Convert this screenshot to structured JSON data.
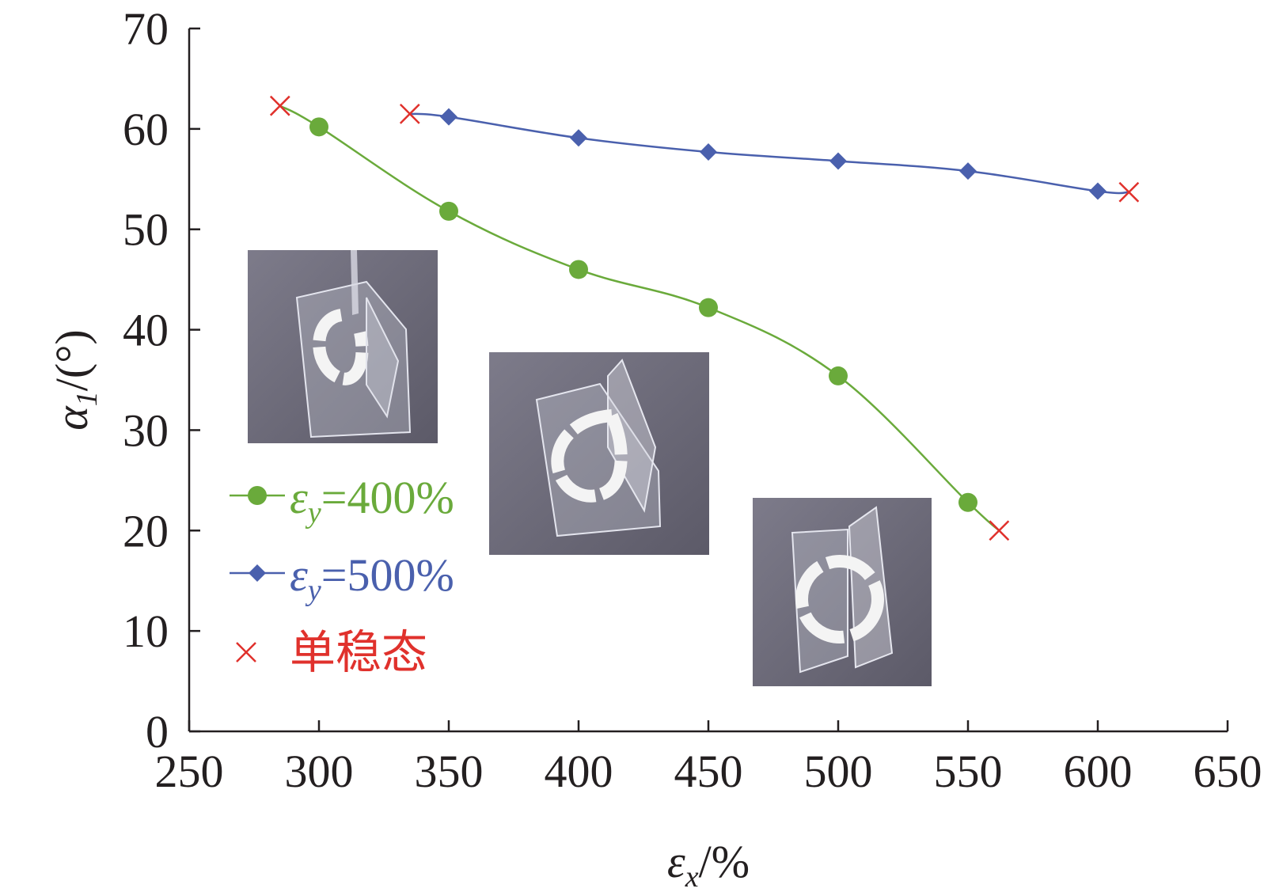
{
  "chart_data": {
    "type": "line",
    "xlabel": {
      "symbol": "ε",
      "sub": "x",
      "unit": "/%"
    },
    "ylabel": {
      "symbol": "α",
      "sub": "1",
      "unit": "/(°)"
    },
    "xlim": [
      250,
      650
    ],
    "ylim": [
      0,
      70
    ],
    "xticks": [
      250,
      300,
      350,
      400,
      450,
      500,
      550,
      600,
      650
    ],
    "yticks": [
      0,
      10,
      20,
      30,
      40,
      50,
      60,
      70
    ],
    "grid": false,
    "legend_position": "left-middle",
    "series": [
      {
        "name": "εy=400%",
        "label": {
          "symbol": "ε",
          "sub": "y",
          "value": "=400%"
        },
        "color": "#6aaa3b",
        "marker": "circle",
        "x": [
          300,
          350,
          400,
          450,
          500,
          550
        ],
        "y": [
          60.2,
          51.8,
          46.0,
          42.2,
          35.4,
          22.8
        ]
      },
      {
        "name": "εy=500%",
        "label": {
          "symbol": "ε",
          "sub": "y",
          "value": "=500%"
        },
        "color": "#4a60ad",
        "marker": "diamond",
        "x": [
          350,
          400,
          450,
          500,
          550,
          600
        ],
        "y": [
          61.2,
          59.1,
          57.7,
          56.8,
          55.8,
          53.8
        ]
      },
      {
        "name": "单稳态",
        "label": {
          "symbol": "",
          "sub": "",
          "value": "单稳态"
        },
        "color": "#e0312c",
        "marker": "x",
        "x": [
          285,
          335,
          562,
          612
        ],
        "y": [
          62.3,
          61.5,
          20.0,
          53.7
        ]
      }
    ],
    "curve_endpoints": {
      "εy=400%": {
        "start": [
          285,
          62.3
        ],
        "end": [
          562,
          20.0
        ]
      },
      "εy=500%": {
        "start": [
          335,
          61.5
        ],
        "end": [
          612,
          53.7
        ]
      }
    },
    "inset_photos": [
      {
        "icon": "film-photo-inset-1"
      },
      {
        "icon": "film-photo-inset-2"
      },
      {
        "icon": "film-photo-inset-3"
      }
    ]
  }
}
